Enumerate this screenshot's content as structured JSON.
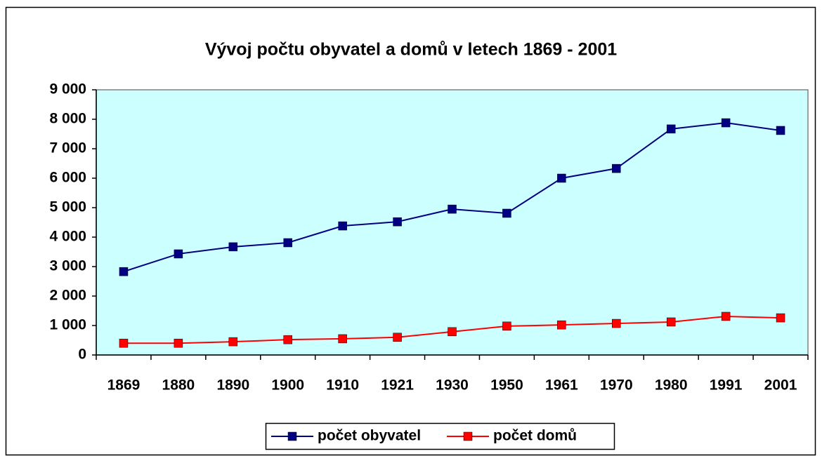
{
  "chart_data": {
    "type": "line",
    "title": "Vývoj počtu obyvatel a domů v letech 1869 - 2001",
    "categories": [
      "1869",
      "1880",
      "1890",
      "1900",
      "1910",
      "1921",
      "1930",
      "1950",
      "1961",
      "1970",
      "1980",
      "1991",
      "2001"
    ],
    "series": [
      {
        "name": "počet obyvatel",
        "color": "#000080",
        "values": [
          2830,
          3430,
          3670,
          3810,
          4380,
          4520,
          4950,
          4810,
          6000,
          6330,
          7670,
          7880,
          7620
        ]
      },
      {
        "name": "počet domů",
        "color": "#ff0000",
        "values": [
          400,
          400,
          450,
          520,
          550,
          600,
          790,
          980,
          1020,
          1070,
          1120,
          1310,
          1260
        ]
      }
    ],
    "ylim": [
      0,
      9000
    ],
    "yticks": [
      0,
      {
        "value": 1000,
        "label": "1 000"
      },
      {
        "value": 2000,
        "label": "2 000"
      },
      {
        "value": 3000,
        "label": "3 000"
      },
      {
        "value": 4000,
        "label": "4 000"
      },
      {
        "value": 5000,
        "label": "5 000"
      },
      {
        "value": 6000,
        "label": "6 000"
      },
      {
        "value": 7000,
        "label": "7 000"
      },
      {
        "value": 8000,
        "label": "8 000"
      },
      {
        "value": 9000,
        "label": "9 000"
      }
    ],
    "legend": "bottom"
  }
}
